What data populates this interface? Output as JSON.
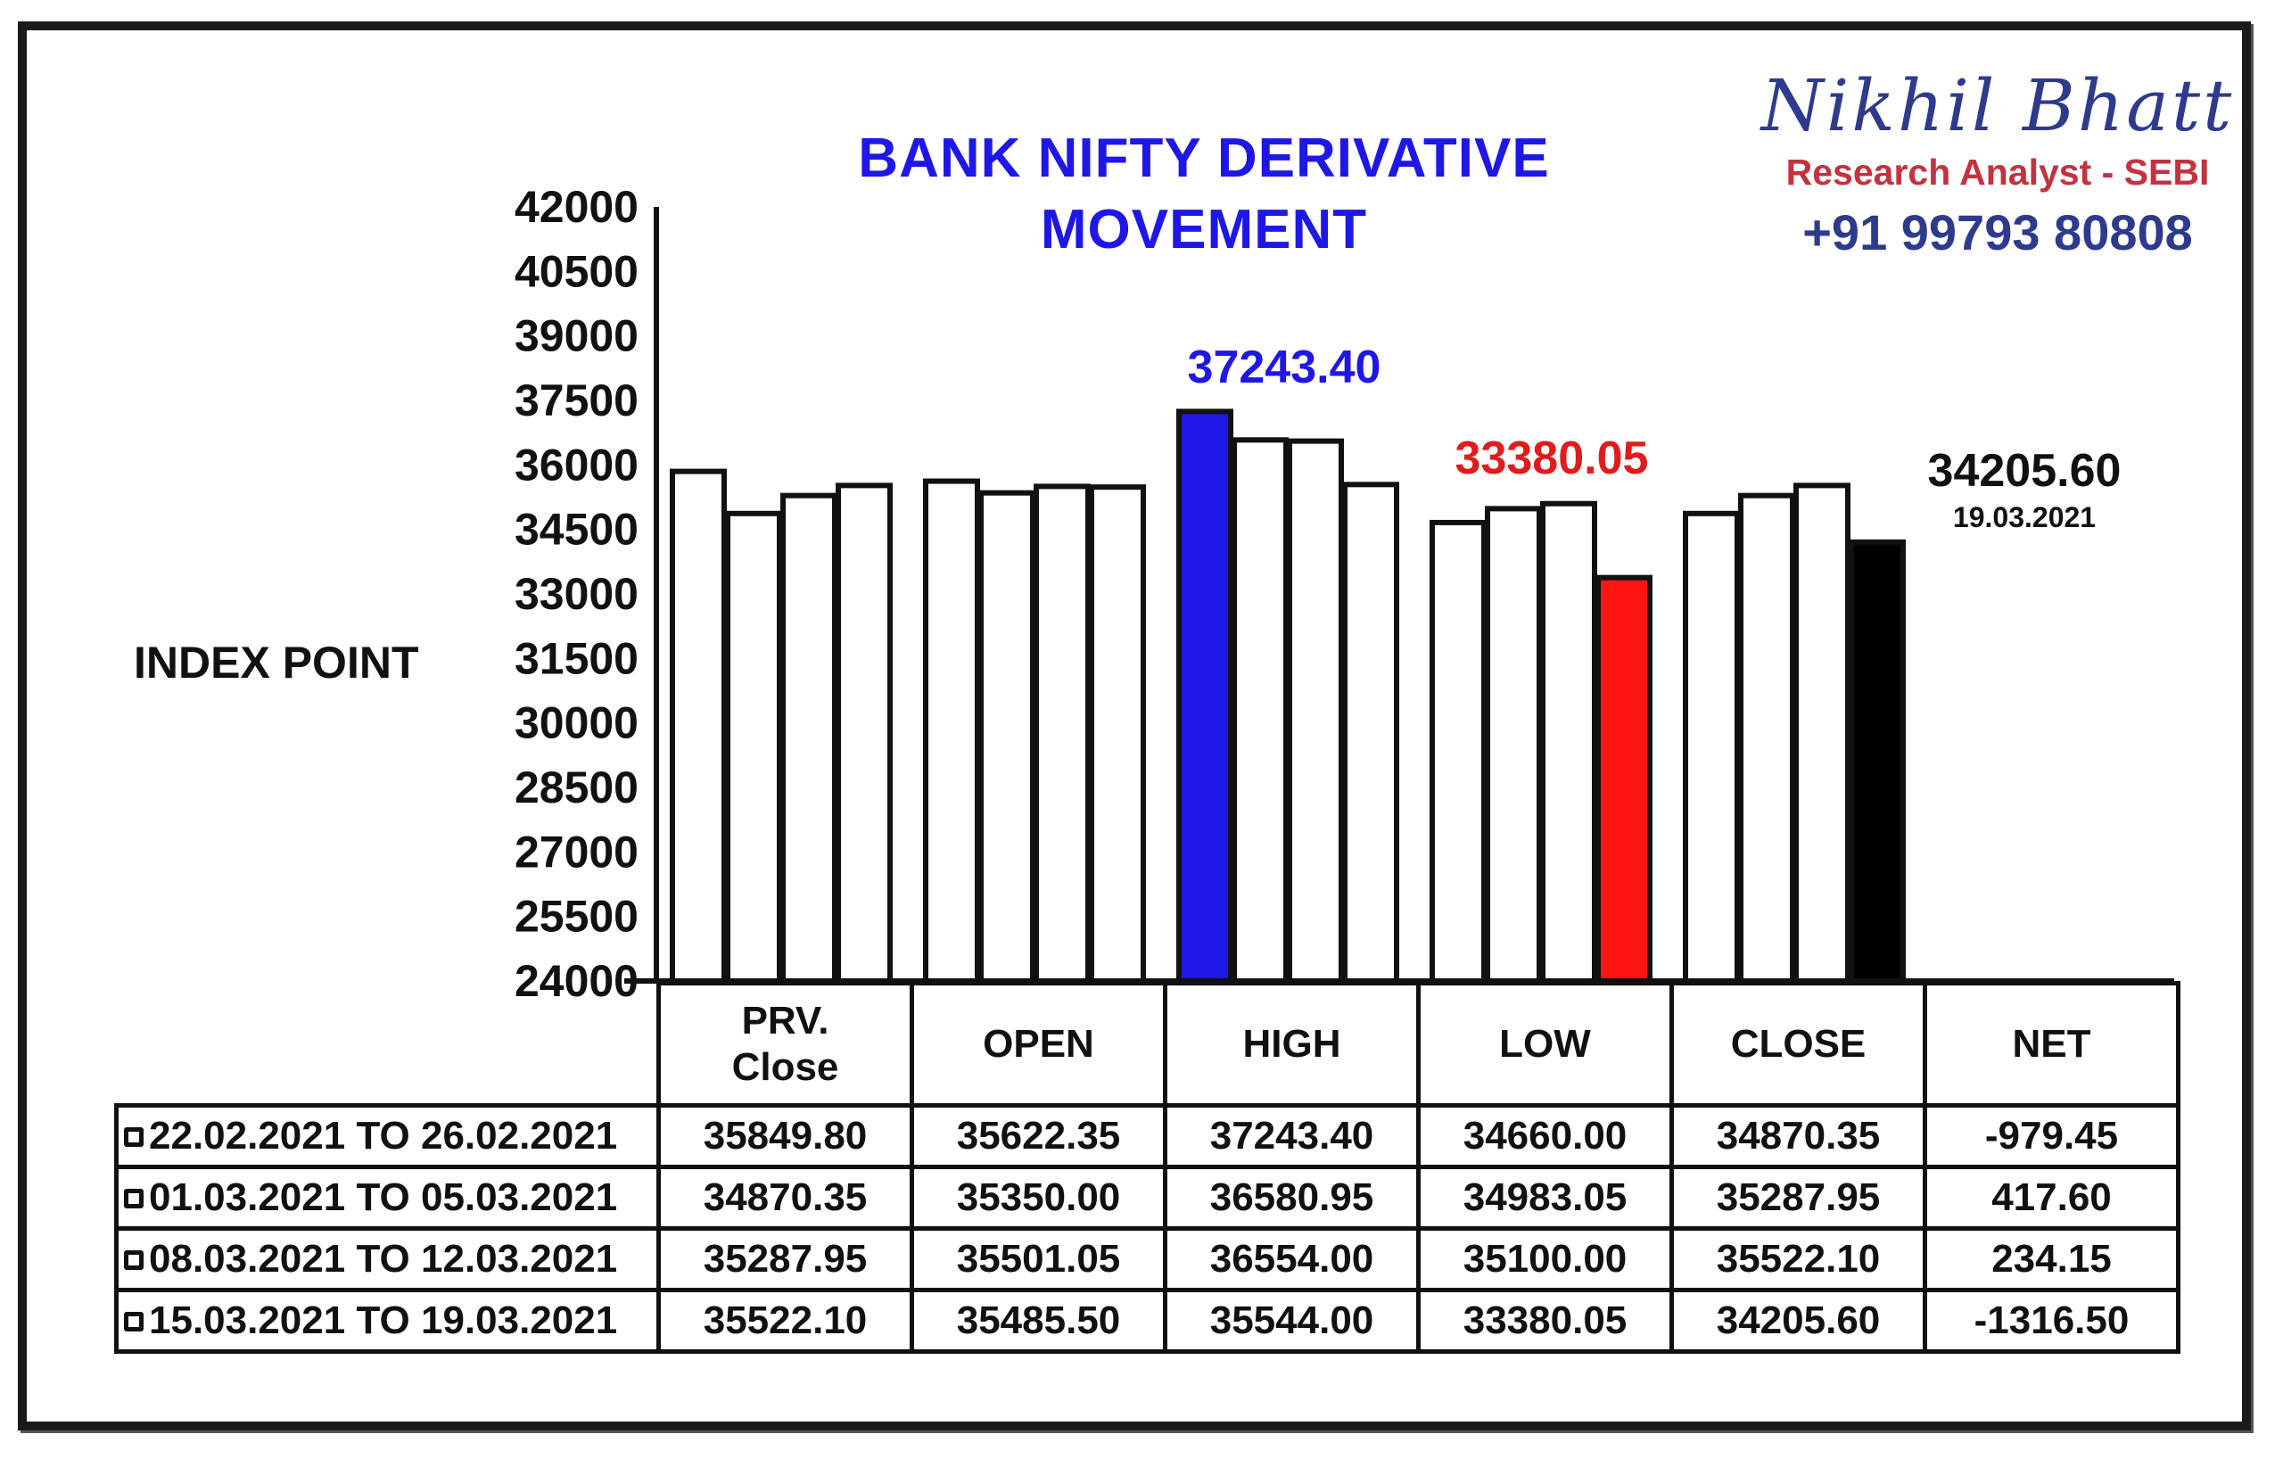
{
  "header": {
    "title_line1": "BANK NIFTY DERIVATIVE",
    "title_line2": "MOVEMENT"
  },
  "brand": {
    "name": "Nikhil Bhatt",
    "role": "Research Analyst - SEBI",
    "phone": "+91 99793 80808"
  },
  "annotations": {
    "high_value": "37243.40",
    "low_value": "33380.05",
    "close_value": "34205.60",
    "close_date": "19.03.2021"
  },
  "colors": {
    "title": "#1e17e6",
    "high_bar": "#1e17e6",
    "low_bar": "#ff1414",
    "close_bar": "#000000",
    "default_bar": "#ffffff",
    "brand_blue": "#2e3a8c",
    "brand_red": "#c3323e"
  },
  "chart_data": {
    "type": "bar",
    "ylabel": "INDEX POINT",
    "ylim": [
      24000,
      42000
    ],
    "yticks": [
      "42000",
      "40500",
      "39000",
      "37500",
      "36000",
      "34500",
      "33000",
      "31500",
      "30000",
      "28500",
      "27000",
      "25500",
      "24000"
    ],
    "categories": [
      "PRV.\nClose",
      "OPEN",
      "HIGH",
      "LOW",
      "CLOSE"
    ],
    "series": [
      {
        "name": "22.02.2021 TO 26.02.2021",
        "values": [
          35849.8,
          35622.35,
          37243.4,
          34660.0,
          34870.35
        ]
      },
      {
        "name": "01.03.2021 TO 05.03.2021",
        "values": [
          34870.35,
          35350.0,
          36580.95,
          34983.05,
          35287.95
        ]
      },
      {
        "name": "08.03.2021 TO 12.03.2021",
        "values": [
          35287.95,
          35501.05,
          36554.0,
          35100.0,
          35522.1
        ]
      },
      {
        "name": "15.03.2021 TO 19.03.2021",
        "values": [
          35522.1,
          35485.5,
          35544.0,
          33380.05,
          34205.6
        ]
      }
    ],
    "highlights": [
      {
        "category": "HIGH",
        "series": 0,
        "color": "#1e17e6"
      },
      {
        "category": "LOW",
        "series": 3,
        "color": "#ff1414"
      },
      {
        "category": "CLOSE",
        "series": 3,
        "color": "#000000"
      }
    ],
    "legend": "table-below"
  },
  "table": {
    "headers": [
      "PRV.\nClose",
      "OPEN",
      "HIGH",
      "LOW",
      "CLOSE",
      "NET"
    ],
    "rows": [
      {
        "period": "22.02.2021 TO 26.02.2021",
        "cells": [
          "35849.80",
          "35622.35",
          "37243.40",
          "34660.00",
          "34870.35",
          "-979.45"
        ]
      },
      {
        "period": "01.03.2021 TO 05.03.2021",
        "cells": [
          "34870.35",
          "35350.00",
          "36580.95",
          "34983.05",
          "35287.95",
          "417.60"
        ]
      },
      {
        "period": "08.03.2021 TO 12.03.2021",
        "cells": [
          "35287.95",
          "35501.05",
          "36554.00",
          "35100.00",
          "35522.10",
          "234.15"
        ]
      },
      {
        "period": "15.03.2021 TO 19.03.2021",
        "cells": [
          "35522.10",
          "35485.50",
          "35544.00",
          "33380.05",
          "34205.60",
          "-1316.50"
        ]
      }
    ]
  }
}
